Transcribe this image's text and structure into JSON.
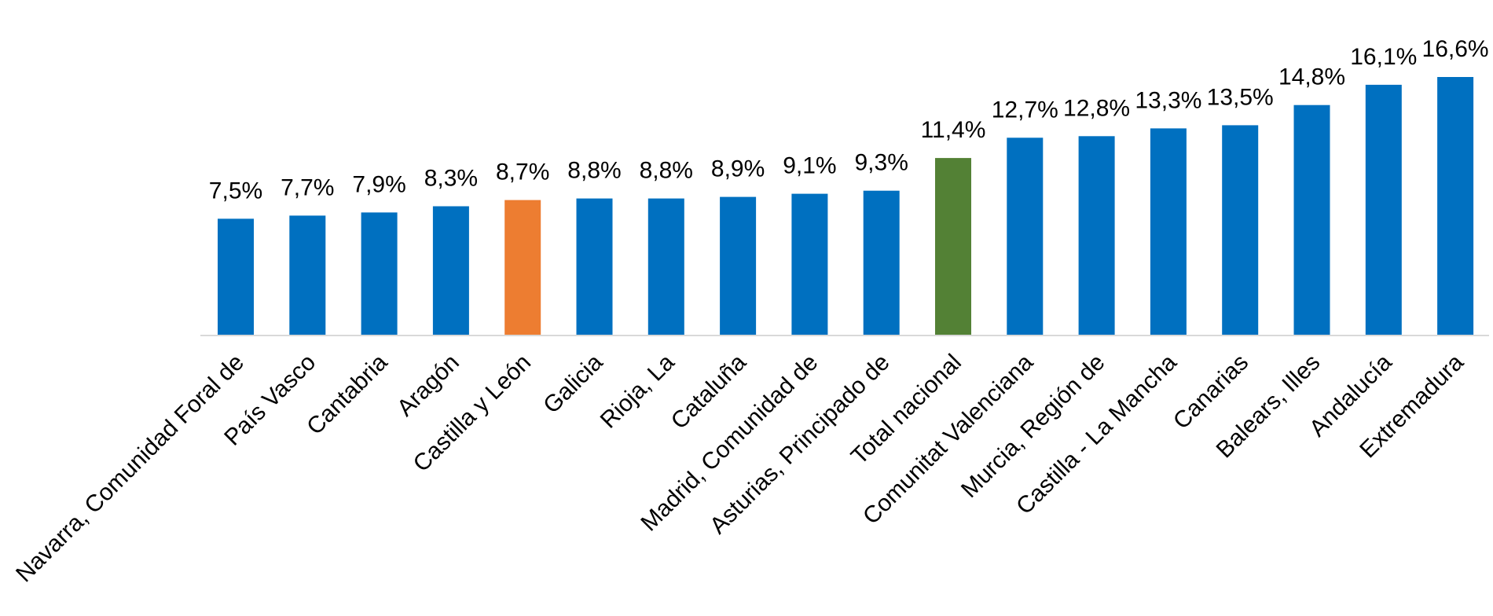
{
  "chart_data": {
    "type": "bar",
    "title": "",
    "xlabel": "",
    "ylabel": "",
    "ylim": [
      0,
      16.6
    ],
    "grid": false,
    "legend": "none",
    "value_format": "comma-decimal-percent",
    "categories": [
      "Navarra, Comunidad Foral de",
      "País Vasco",
      "Cantabria",
      "Aragón",
      "Castilla y León",
      "Galicia",
      "Rioja, La",
      "Cataluña",
      "Madrid, Comunidad de",
      "Asturias, Principado de",
      "Total nacional",
      "Comunitat Valenciana",
      "Murcia, Región de",
      "Castilla - La Mancha",
      "Canarias",
      "Balears, Illes",
      "Andalucía",
      "Extremadura"
    ],
    "values": [
      7.5,
      7.7,
      7.9,
      8.3,
      8.7,
      8.8,
      8.8,
      8.9,
      9.1,
      9.3,
      11.4,
      12.7,
      12.8,
      13.3,
      13.5,
      14.8,
      16.1,
      16.6
    ],
    "value_labels": [
      "7,5%",
      "7,7%",
      "7,9%",
      "8,3%",
      "8,7%",
      "8,8%",
      "8,8%",
      "8,9%",
      "9,1%",
      "9,3%",
      "11,4%",
      "12,7%",
      "12,8%",
      "13,3%",
      "13,5%",
      "14,8%",
      "16,1%",
      "16,6%"
    ],
    "colors": {
      "default": "#0070C0",
      "highlight": "#ED7D31",
      "total": "#538135",
      "axis": "#D9D9D9"
    },
    "bar_color_keys": [
      "default",
      "default",
      "default",
      "default",
      "highlight",
      "default",
      "default",
      "default",
      "default",
      "default",
      "total",
      "default",
      "default",
      "default",
      "default",
      "default",
      "default",
      "default"
    ]
  }
}
